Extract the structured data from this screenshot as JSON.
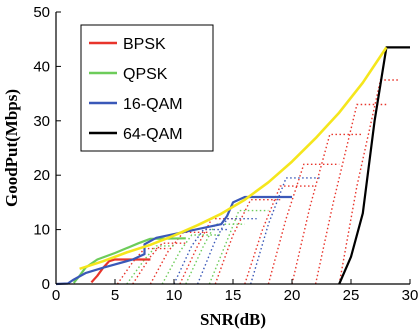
{
  "chart_data": {
    "type": "line",
    "title": "",
    "xlabel": "SNR(dB)",
    "ylabel": "GoodPut(Mbps)",
    "xlim": [
      0,
      30
    ],
    "ylim": [
      0,
      50
    ],
    "xticks": [
      "0",
      "5",
      "10",
      "15",
      "20",
      "25",
      "30"
    ],
    "yticks": [
      "0",
      "10",
      "20",
      "30",
      "40",
      "50"
    ],
    "grid": false,
    "legend_position": "top-left",
    "series": [
      {
        "name": "BPSK",
        "color": "#e8342b",
        "style": "solid",
        "points": [
          [
            3,
            0.3
          ],
          [
            3.5,
            1.5
          ],
          [
            4,
            3
          ],
          [
            4.5,
            4.2
          ],
          [
            5,
            4.5
          ],
          [
            8,
            4.5
          ]
        ]
      },
      {
        "name": "QPSK",
        "color": "#6dcc5a",
        "style": "solid",
        "points": [
          [
            1.5,
            0.2
          ],
          [
            2,
            1.5
          ],
          [
            2.5,
            3
          ],
          [
            3.5,
            4.5
          ],
          [
            5,
            5.7
          ],
          [
            7,
            7.5
          ],
          [
            8,
            8.3
          ],
          [
            11,
            8.4
          ]
        ]
      },
      {
        "name": "16-QAM",
        "color": "#3a58b8",
        "style": "solid",
        "points": [
          [
            0,
            0
          ],
          [
            1,
            0.1
          ],
          [
            1.5,
            0.8
          ],
          [
            2.5,
            2
          ],
          [
            4,
            3
          ],
          [
            6.5,
            4.5
          ],
          [
            7.5,
            5.5
          ],
          [
            7.5,
            7.3
          ],
          [
            8.5,
            8.5
          ],
          [
            14,
            11
          ],
          [
            14.5,
            12.5
          ],
          [
            15,
            15
          ],
          [
            16,
            16
          ],
          [
            20,
            16
          ]
        ]
      },
      {
        "name": "64-QAM",
        "color": "#000000",
        "style": "solid",
        "points": [
          [
            24,
            0
          ],
          [
            25,
            5
          ],
          [
            26,
            13
          ],
          [
            27,
            30
          ],
          [
            28,
            43.5
          ],
          [
            30,
            43.5
          ]
        ]
      },
      {
        "name": "",
        "color": "#f5e61c",
        "style": "solid",
        "points": [
          [
            2,
            2.8
          ],
          [
            4,
            4.2
          ],
          [
            6,
            5.8
          ],
          [
            8,
            7.2
          ],
          [
            10,
            8.9
          ],
          [
            12,
            10.8
          ],
          [
            14,
            12.9
          ],
          [
            16,
            15.5
          ],
          [
            18,
            18.7
          ],
          [
            20,
            22.5
          ],
          [
            22,
            26.8
          ],
          [
            24,
            31.5
          ],
          [
            26,
            37
          ],
          [
            28,
            43.5
          ]
        ]
      }
    ],
    "dotted_series": [
      {
        "color": "#e8342b",
        "points": [
          [
            5.2,
            0
          ],
          [
            6.5,
            4
          ],
          [
            7.5,
            6.5
          ],
          [
            9.5,
            6.5
          ]
        ]
      },
      {
        "color": "#e8342b",
        "points": [
          [
            6.5,
            0
          ],
          [
            8,
            5
          ],
          [
            9,
            7.5
          ],
          [
            11,
            7.5
          ]
        ]
      },
      {
        "color": "#e8342b",
        "points": [
          [
            8,
            0
          ],
          [
            9.5,
            6
          ],
          [
            10.8,
            9.5
          ],
          [
            13,
            9.5
          ]
        ]
      },
      {
        "color": "#e8342b",
        "points": [
          [
            10.5,
            0
          ],
          [
            12,
            7
          ],
          [
            13.2,
            12
          ],
          [
            15.5,
            12
          ]
        ]
      },
      {
        "color": "#e8342b",
        "points": [
          [
            13.5,
            0
          ],
          [
            15,
            9
          ],
          [
            16.5,
            15.5
          ],
          [
            19,
            15.5
          ]
        ]
      },
      {
        "color": "#e8342b",
        "points": [
          [
            16,
            0
          ],
          [
            17.5,
            10
          ],
          [
            19,
            18
          ],
          [
            22,
            18
          ]
        ]
      },
      {
        "color": "#e8342b",
        "points": [
          [
            18,
            0
          ],
          [
            19.5,
            12
          ],
          [
            21,
            22
          ],
          [
            24,
            22
          ]
        ]
      },
      {
        "color": "#e8342b",
        "points": [
          [
            20,
            0
          ],
          [
            21.5,
            14
          ],
          [
            23.2,
            27.5
          ],
          [
            26,
            27.5
          ]
        ]
      },
      {
        "color": "#e8342b",
        "points": [
          [
            22,
            0
          ],
          [
            23.5,
            15
          ],
          [
            25.5,
            33
          ],
          [
            28,
            33
          ]
        ]
      },
      {
        "color": "#e8342b",
        "points": [
          [
            24,
            0
          ],
          [
            25.5,
            18
          ],
          [
            27.5,
            37.5
          ],
          [
            29,
            37.5
          ]
        ]
      },
      {
        "color": "#6dcc5a",
        "points": [
          [
            9,
            0
          ],
          [
            10.5,
            6
          ],
          [
            11.5,
            9
          ],
          [
            14,
            9
          ]
        ]
      },
      {
        "color": "#6dcc5a",
        "points": [
          [
            11,
            0
          ],
          [
            12.5,
            7
          ],
          [
            13.5,
            11
          ],
          [
            16,
            11
          ]
        ]
      },
      {
        "color": "#6dcc5a",
        "points": [
          [
            13,
            0
          ],
          [
            14.5,
            8
          ],
          [
            15.5,
            13.5
          ],
          [
            18,
            13.5
          ]
        ]
      },
      {
        "color": "#6dcc5a",
        "points": [
          [
            6,
            0
          ],
          [
            7.5,
            4.5
          ],
          [
            8.5,
            7
          ],
          [
            10,
            7
          ]
        ]
      },
      {
        "color": "#3a58b8",
        "points": [
          [
            12,
            0
          ],
          [
            13.5,
            8
          ],
          [
            14.5,
            12
          ],
          [
            17,
            12
          ]
        ]
      },
      {
        "color": "#3a58b8",
        "points": [
          [
            10,
            0
          ],
          [
            11.5,
            7
          ],
          [
            12.5,
            10
          ],
          [
            14.5,
            10
          ]
        ]
      },
      {
        "color": "#3a58b8",
        "points": [
          [
            16.5,
            0
          ],
          [
            18,
            11
          ],
          [
            19.5,
            19.5
          ],
          [
            22.5,
            19.5
          ]
        ]
      }
    ]
  }
}
